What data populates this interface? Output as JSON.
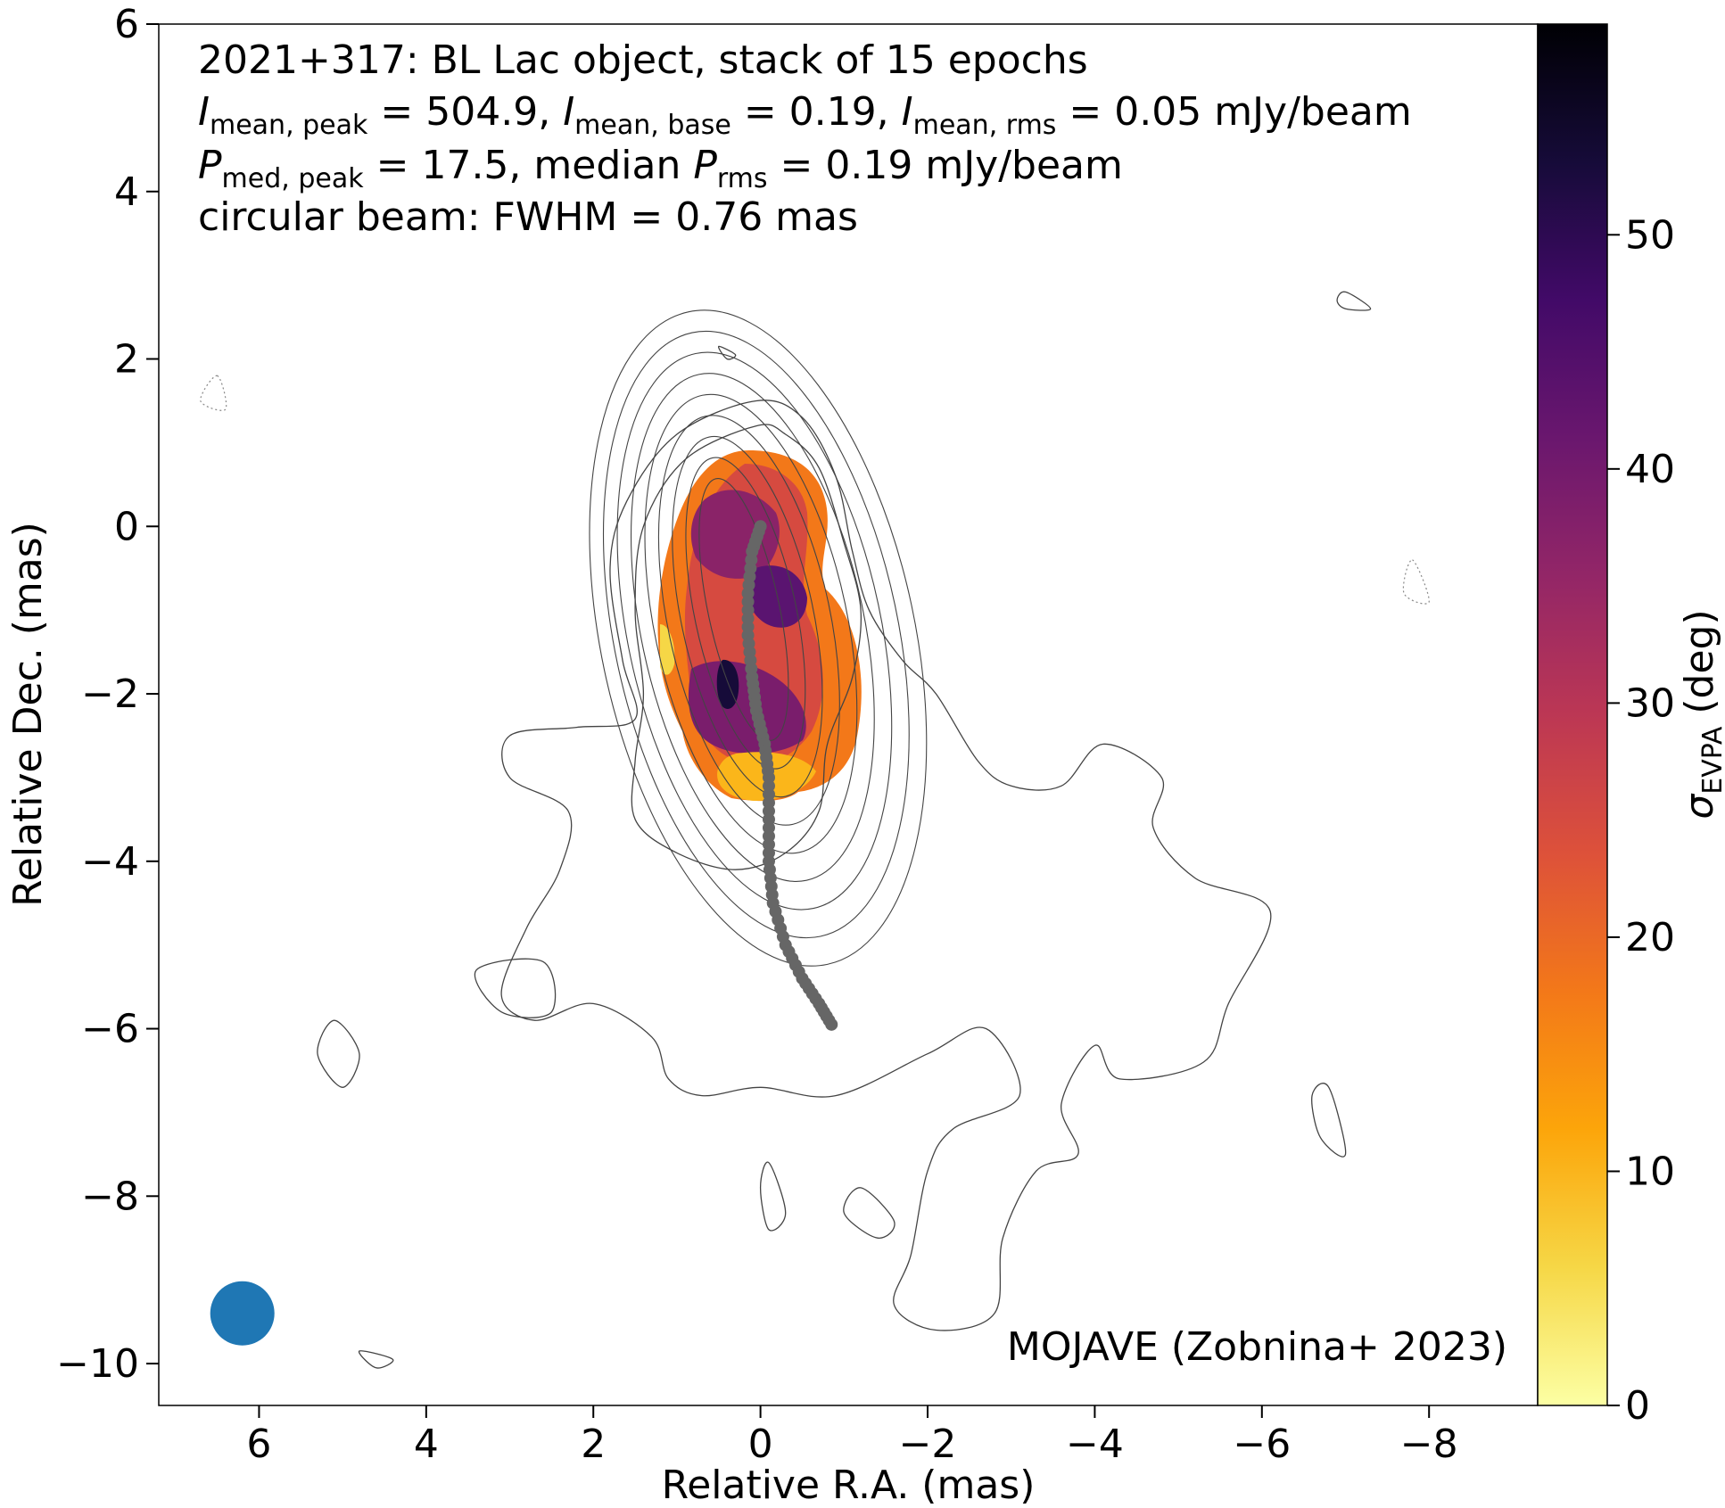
{
  "chart_data": {
    "type": "heatmap",
    "title": "",
    "annotations": {
      "line1": "2021+317: BL Lac object, stack of 15 epochs",
      "line2": {
        "i_sym": "I",
        "i_peak_sub": "mean, peak",
        "i_peak_val": " = 504.9, ",
        "i_base_sub": "mean, base",
        "i_base_val": " = 0.19, ",
        "i_rms_sub": "mean, rms",
        "i_rms_val": " = 0.05 mJy/beam"
      },
      "line3": {
        "p_sym": "P",
        "p_peak_sub": "med, peak",
        "p_peak_val": " = 17.5, median ",
        "p_rms_sub": "rms",
        "p_rms_val": " = 0.19 mJy/beam"
      },
      "line4": "circular beam: FWHM = 0.76 mas",
      "credit": "MOJAVE (Zobnina+ 2023)"
    },
    "xlabel": "Relative R.A. (mas)",
    "ylabel": "Relative Dec. (mas)",
    "xlim": [
      7.2,
      -9.3
    ],
    "ylim": [
      -10.5,
      6.0
    ],
    "xticks": [
      6,
      4,
      2,
      0,
      -2,
      -4,
      -6,
      -8
    ],
    "xtick_labels": [
      "6",
      "4",
      "2",
      "0",
      "−2",
      "−4",
      "−6",
      "−8"
    ],
    "yticks": [
      6,
      4,
      2,
      0,
      -2,
      -4,
      -6,
      -8,
      -10
    ],
    "ytick_labels": [
      "6",
      "4",
      "2",
      "0",
      "−2",
      "−4",
      "−6",
      "−8",
      "−10"
    ],
    "colorbar": {
      "label_sym": "σ",
      "label_sub": "EVPA",
      "label_unit": " (deg)",
      "range": [
        0,
        59
      ],
      "ticks": [
        0,
        10,
        20,
        30,
        40,
        50
      ],
      "tick_labels": [
        "0",
        "10",
        "20",
        "30",
        "40",
        "50"
      ],
      "colormap": "inferno_r"
    },
    "beam": {
      "x": 6.2,
      "y": -9.4,
      "fwhm_mas": 0.76,
      "color": "#1f77b4"
    },
    "ridgeline": {
      "color": "#666666",
      "points": [
        [
          0.0,
          0.0
        ],
        [
          0.1,
          -0.3
        ],
        [
          0.15,
          -0.8
        ],
        [
          0.15,
          -1.3
        ],
        [
          0.1,
          -1.8
        ],
        [
          0.05,
          -2.2
        ],
        [
          -0.05,
          -2.6
        ],
        [
          -0.1,
          -3.0
        ],
        [
          -0.1,
          -3.5
        ],
        [
          -0.1,
          -4.0
        ],
        [
          -0.15,
          -4.5
        ],
        [
          -0.3,
          -5.0
        ],
        [
          -0.5,
          -5.4
        ],
        [
          -0.7,
          -5.7
        ],
        [
          -0.85,
          -5.95
        ]
      ]
    },
    "contours_positive": [
      [
        [
          0.05,
          1.5
        ],
        [
          1.0,
          1.1
        ],
        [
          1.6,
          0.3
        ],
        [
          1.8,
          -0.5
        ],
        [
          1.65,
          -1.6
        ],
        [
          1.5,
          -2.3
        ],
        [
          2.2,
          -2.4
        ],
        [
          3.0,
          -2.5
        ],
        [
          3.0,
          -3.0
        ],
        [
          2.3,
          -3.4
        ],
        [
          2.4,
          -4.1
        ],
        [
          2.8,
          -4.8
        ],
        [
          3.1,
          -5.6
        ],
        [
          2.7,
          -5.9
        ],
        [
          2.0,
          -5.7
        ],
        [
          1.3,
          -6.1
        ],
        [
          1.1,
          -6.6
        ],
        [
          0.7,
          -6.8
        ],
        [
          0.0,
          -6.7
        ],
        [
          -0.9,
          -6.8
        ],
        [
          -2.0,
          -6.3
        ],
        [
          -2.7,
          -6.0
        ],
        [
          -3.1,
          -6.8
        ],
        [
          -2.3,
          -7.2
        ],
        [
          -2.0,
          -7.7
        ],
        [
          -1.8,
          -8.7
        ],
        [
          -1.6,
          -9.3
        ],
        [
          -2.1,
          -9.6
        ],
        [
          -2.8,
          -9.4
        ],
        [
          -2.9,
          -8.5
        ],
        [
          -3.3,
          -7.7
        ],
        [
          -3.8,
          -7.5
        ],
        [
          -3.6,
          -6.9
        ],
        [
          -4.0,
          -6.2
        ],
        [
          -4.3,
          -6.6
        ],
        [
          -5.3,
          -6.4
        ],
        [
          -5.6,
          -5.7
        ],
        [
          -6.1,
          -4.6
        ],
        [
          -5.2,
          -4.2
        ],
        [
          -4.7,
          -3.6
        ],
        [
          -4.8,
          -3.0
        ],
        [
          -4.1,
          -2.6
        ],
        [
          -3.6,
          -3.1
        ],
        [
          -3.0,
          -3.1
        ],
        [
          -2.6,
          -2.8
        ],
        [
          -2.1,
          -2.0
        ],
        [
          -1.7,
          -1.6
        ],
        [
          -1.3,
          -1.0
        ],
        [
          -1.1,
          -0.3
        ],
        [
          -0.9,
          0.6
        ],
        [
          -0.5,
          1.3
        ]
      ],
      [
        [
          0.05,
          1.2
        ],
        [
          0.9,
          0.8
        ],
        [
          1.4,
          0.0
        ],
        [
          1.5,
          -1.0
        ],
        [
          1.4,
          -2.0
        ],
        [
          1.5,
          -2.8
        ],
        [
          1.5,
          -3.5
        ],
        [
          1.0,
          -3.9
        ],
        [
          0.3,
          -4.1
        ],
        [
          -0.3,
          -3.9
        ],
        [
          -0.7,
          -3.4
        ],
        [
          -0.8,
          -2.6
        ],
        [
          -1.1,
          -1.8
        ],
        [
          -1.2,
          -1.0
        ],
        [
          -1.0,
          -0.2
        ],
        [
          -0.7,
          0.7
        ],
        [
          -0.3,
          1.1
        ]
      ],
      [
        [
          5.1,
          -5.9
        ],
        [
          5.3,
          -6.3
        ],
        [
          5.0,
          -6.7
        ],
        [
          4.8,
          -6.3
        ]
      ],
      [
        [
          3.4,
          -5.3
        ],
        [
          3.1,
          -5.8
        ],
        [
          2.5,
          -5.8
        ],
        [
          2.6,
          -5.2
        ]
      ],
      [
        [
          -7.0,
          2.8
        ],
        [
          -7.3,
          2.6
        ],
        [
          -7.0,
          2.6
        ],
        [
          -6.9,
          2.7
        ]
      ],
      [
        [
          0.4,
          2.0
        ],
        [
          0.5,
          2.15
        ],
        [
          0.3,
          2.05
        ]
      ],
      [
        [
          -6.8,
          -6.7
        ],
        [
          -7.0,
          -7.5
        ],
        [
          -6.7,
          -7.3
        ],
        [
          -6.6,
          -6.8
        ]
      ],
      [
        [
          -1.2,
          -7.9
        ],
        [
          -1.6,
          -8.3
        ],
        [
          -1.4,
          -8.5
        ],
        [
          -1.0,
          -8.2
        ]
      ],
      [
        [
          -0.1,
          -7.6
        ],
        [
          -0.3,
          -8.2
        ],
        [
          -0.1,
          -8.4
        ],
        [
          0.0,
          -7.9
        ]
      ],
      [
        [
          4.8,
          -9.85
        ],
        [
          4.6,
          -10.05
        ],
        [
          4.4,
          -9.95
        ]
      ]
    ],
    "contours_negative": [
      [
        [
          6.5,
          1.8
        ],
        [
          6.7,
          1.5
        ],
        [
          6.4,
          1.4
        ]
      ],
      [
        [
          -7.8,
          -0.4
        ],
        [
          -8.0,
          -0.9
        ],
        [
          -7.7,
          -0.8
        ]
      ]
    ]
  }
}
